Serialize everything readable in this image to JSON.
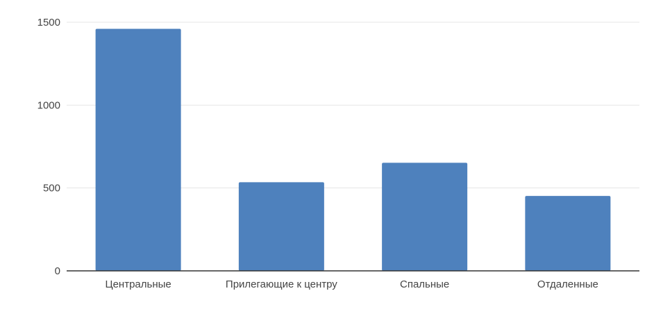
{
  "chart_data": {
    "type": "bar",
    "title": "",
    "xlabel": "",
    "ylabel": "",
    "categories": [
      "Центральные",
      "Прилегающие к центру",
      "Спальные",
      "Отдаленные"
    ],
    "values": [
      1460,
      535,
      652,
      452
    ],
    "ylim": [
      0,
      1500
    ],
    "yticks": [
      0,
      500,
      1000,
      1500
    ],
    "grid": true,
    "legend": "none",
    "bar_color": "#4e81bd",
    "grid_color": "#e5e5e5",
    "axis_color": "#333333",
    "label_color": "#444444"
  }
}
